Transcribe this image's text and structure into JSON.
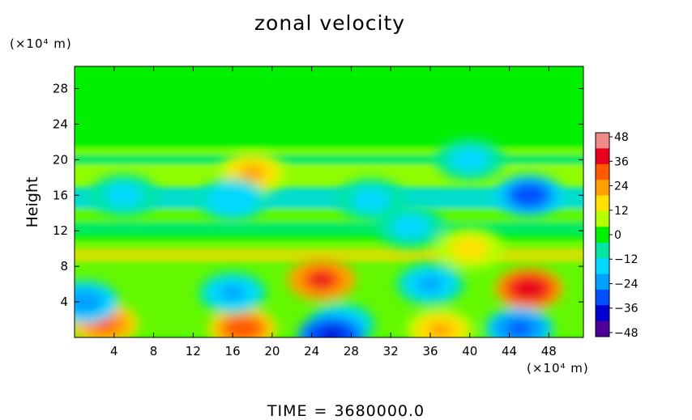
{
  "chart_data": {
    "type": "heatmap",
    "title": "zonal velocity",
    "xlabel": "",
    "ylabel": "Height",
    "x_unit": "(×10⁴ m)",
    "y_unit": "(×10⁴ m)",
    "xlim": [
      0,
      51.5
    ],
    "ylim": [
      0,
      30.5
    ],
    "x_ticks": [
      4,
      8,
      12,
      16,
      20,
      24,
      28,
      32,
      36,
      40,
      44,
      48
    ],
    "y_ticks": [
      4,
      8,
      12,
      16,
      20,
      24,
      28
    ],
    "colorbar": {
      "range": [
        -50,
        50
      ],
      "ticks": [
        48,
        36,
        24,
        12,
        0,
        -12,
        -24,
        -36,
        -48
      ],
      "colors": [
        "#f08a8a",
        "#e8001e",
        "#ff5a00",
        "#ffa000",
        "#ffe000",
        "#b4ff00",
        "#00f000",
        "#00e6a0",
        "#00d8ff",
        "#00a0ff",
        "#0050ff",
        "#0000d0",
        "#50009a"
      ]
    },
    "features": [
      {
        "x": 25,
        "y": 6.5,
        "value": 38
      },
      {
        "x": 46,
        "y": 5.5,
        "value": 42
      },
      {
        "x": 3,
        "y": 1.5,
        "value": 30
      },
      {
        "x": 17,
        "y": 1,
        "value": 34
      },
      {
        "x": 37,
        "y": 0.8,
        "value": 22
      },
      {
        "x": 18,
        "y": 18.5,
        "value": 22
      },
      {
        "x": 40,
        "y": 10,
        "value": 16
      },
      {
        "x": 16,
        "y": 5,
        "value": -22
      },
      {
        "x": 36,
        "y": 6,
        "value": -22
      },
      {
        "x": 27,
        "y": 1.5,
        "value": -20
      },
      {
        "x": 45,
        "y": 1,
        "value": -30
      },
      {
        "x": 26,
        "y": 0.2,
        "value": -40
      },
      {
        "x": 1,
        "y": 4,
        "value": -26
      },
      {
        "x": 46,
        "y": 16,
        "value": -34
      },
      {
        "x": 16,
        "y": 15.5,
        "value": -18
      },
      {
        "x": 30,
        "y": 15.5,
        "value": -16
      },
      {
        "x": 5,
        "y": 16,
        "value": -16
      },
      {
        "x": 34,
        "y": 12.5,
        "value": -14
      },
      {
        "x": 40,
        "y": 20,
        "value": -14
      }
    ]
  },
  "time_label": "TIME",
  "time_equals": "=",
  "time_value": "3680000.0"
}
